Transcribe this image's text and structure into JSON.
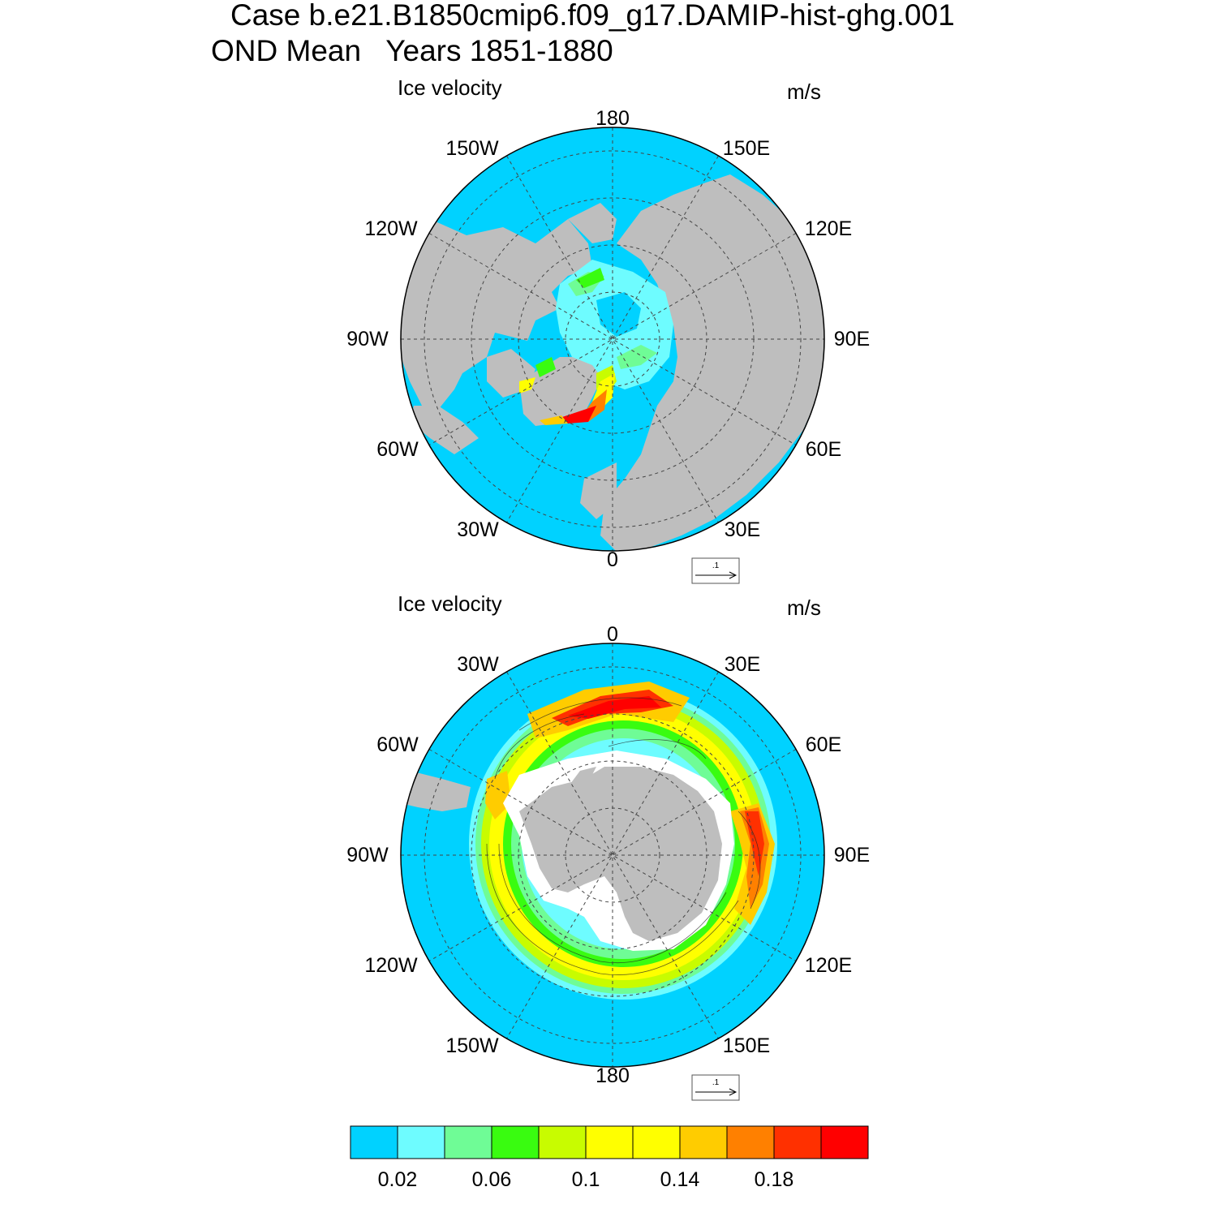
{
  "title": {
    "line1": "Case b.e21.B1850cmip6.f09_g17.DAMIP-hist-ghg.001",
    "line2": "OND Mean   Years 1851-1880"
  },
  "colors": {
    "ocean_background": "#00d2ff",
    "land": "#bebebe",
    "no_ice": "#ffffff"
  },
  "maps": [
    {
      "hemisphere": "north",
      "left_label": "Ice velocity",
      "right_label": "m/s",
      "longitude_labels": {
        "top": "180",
        "top_right": "150E",
        "right_upper": "120E",
        "right": "90E",
        "right_lower": "60E",
        "bottom_right": "30E",
        "bottom": "0",
        "bottom_left": "30W",
        "left_lower": "60W",
        "left": "90W",
        "left_upper": "120W",
        "top_left": "150W"
      },
      "reference_vector": ".1"
    },
    {
      "hemisphere": "south",
      "left_label": "Ice velocity",
      "right_label": "m/s",
      "longitude_labels": {
        "top": "0",
        "top_right": "30E",
        "right_upper": "60E",
        "right": "90E",
        "right_lower": "120E",
        "bottom_right": "150E",
        "bottom": "180",
        "bottom_left": "150W",
        "left_lower": "120W",
        "left": "90W",
        "left_upper": "60W",
        "top_left": "30W"
      },
      "reference_vector": ".1"
    }
  ],
  "colorbar": {
    "colors": [
      "#00d2ff",
      "#6efcff",
      "#6ffc96",
      "#39fc10",
      "#c8fc00",
      "#ffff00",
      "#ffff00",
      "#ffcc00",
      "#ff8000",
      "#ff3000",
      "#ff0000"
    ],
    "tick_labels": [
      "0.02",
      "0.06",
      "0.1",
      "0.14",
      "0.18"
    ],
    "bin_edges": [
      0.02,
      0.04,
      0.06,
      0.08,
      0.1,
      0.12,
      0.14,
      0.16,
      0.18,
      0.2
    ]
  }
}
